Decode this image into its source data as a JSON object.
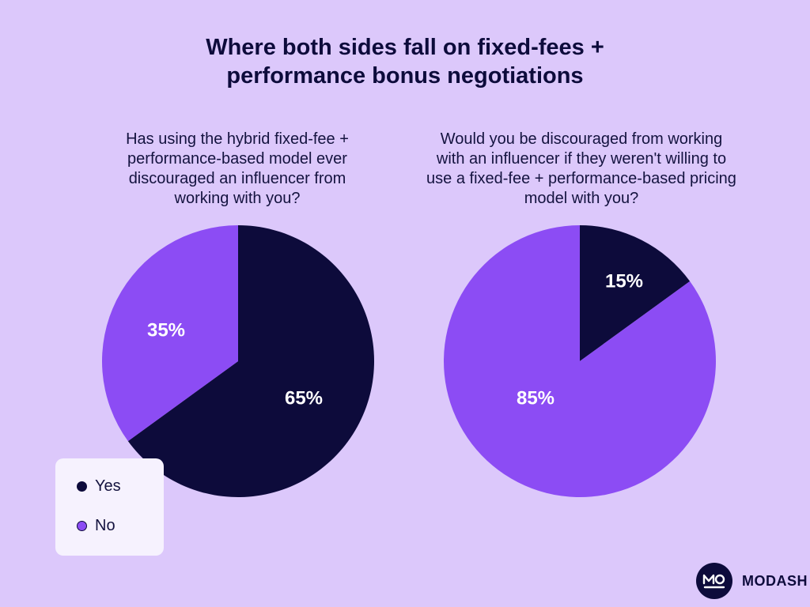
{
  "title_lines": [
    "Where both sides fall on fixed-fees +",
    "performance bonus negotiations"
  ],
  "colors": {
    "background": "#dcc8fb",
    "yes": "#0d0b3b",
    "no": "#8c4cf4",
    "legend_bg": "#f6f2fe"
  },
  "legend": {
    "yes_label": "Yes",
    "no_label": "No"
  },
  "brand": {
    "name": "MODASH",
    "logo_icon": "modash-logo-icon"
  },
  "chart_data": [
    {
      "type": "pie",
      "title_lines": [
        "Has using the hybrid fixed-fee +",
        "performance-based model ever",
        "discouraged an influencer from",
        "working with you?"
      ],
      "slices": [
        {
          "name": "Yes",
          "value": 65,
          "label": "65%"
        },
        {
          "name": "No",
          "value": 35,
          "label": "35%"
        }
      ]
    },
    {
      "type": "pie",
      "title_lines": [
        "Would you be discouraged from working",
        "with an influencer if they weren't willing to",
        "use a fixed-fee + performance-based pricing",
        "model with you?"
      ],
      "slices": [
        {
          "name": "Yes",
          "value": 15,
          "label": "15%"
        },
        {
          "name": "No",
          "value": 85,
          "label": "85%"
        }
      ]
    }
  ]
}
